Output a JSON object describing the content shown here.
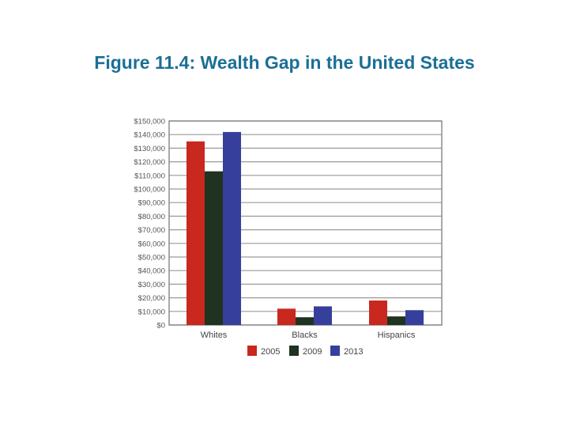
{
  "slide": {
    "title": "Figure 11.4: Wealth Gap in the United States"
  },
  "chart_data": {
    "type": "bar",
    "title": "",
    "xlabel": "",
    "ylabel": "",
    "categories": [
      "Whites",
      "Blacks",
      "Hispanics"
    ],
    "series": [
      {
        "name": "2005",
        "color": "#c8281e",
        "values": [
          135000,
          12000,
          18000
        ]
      },
      {
        "name": "2009",
        "color": "#1f3320",
        "values": [
          113000,
          5700,
          6300
        ]
      },
      {
        "name": "2013",
        "color": "#373f9c",
        "values": [
          141900,
          13700,
          10900
        ]
      }
    ],
    "ylim": [
      0,
      150000
    ],
    "ytick_step": 10000,
    "yticks": [
      "$0",
      "$10,000",
      "$20,000",
      "$30,000",
      "$40,000",
      "$50,000",
      "$60,000",
      "$70,000",
      "$80,000",
      "$90,000",
      "$100,000",
      "$110,000",
      "$120,000",
      "$130,000",
      "$140,000",
      "$150,000"
    ],
    "grid": true,
    "legend_position": "bottom-center"
  }
}
